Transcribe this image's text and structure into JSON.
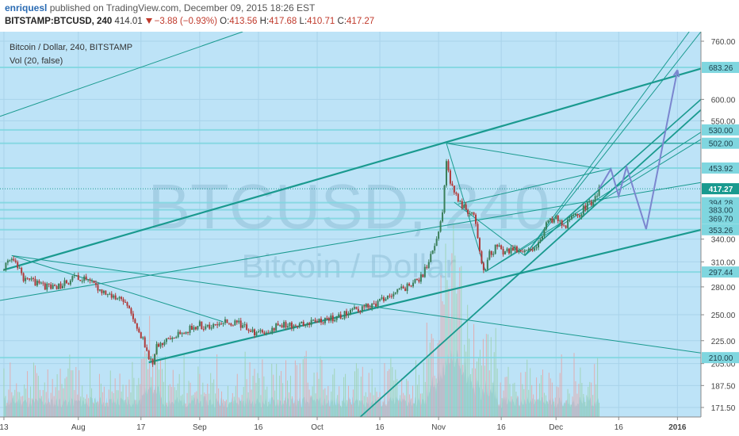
{
  "header": {
    "author": "enriquesl",
    "published_text": "published on TradingView.com, December 09, 2015 18:26 EST",
    "symbol": "BITSTAMP:BTCUSD, 240",
    "last": "414.01",
    "change": "−3.88 (−0.93%)",
    "open_label": "O:",
    "open": "413.56",
    "high_label": "H:",
    "high": "417.68",
    "low_label": "L:",
    "low": "410.71",
    "close_label": "C:",
    "close": "417.27"
  },
  "legend": {
    "series": "Bitcoin / Dollar, 240, BITSTAMP",
    "volume": "Vol (20, false)"
  },
  "watermark": {
    "symbol": "BTCUSD, 240",
    "name": "Bitcoin / Dollar"
  },
  "colors": {
    "plot_bg": "#bde3f7",
    "trend_line": "#1a9a8f",
    "projection": "#7b86cf",
    "candle_up": "#3a7f5a",
    "candle_down": "#b03a3a",
    "volume": "#6fbfd8",
    "axis_label_bg": "#7fd6df",
    "current_price_bg": "#1a9a8f"
  },
  "chart_data": {
    "type": "candlestick",
    "title": "Bitcoin / Dollar, 240, BITSTAMP",
    "price_scale": "log",
    "ylim": [
      165,
      790
    ],
    "y_ticks": [
      171.5,
      187.5,
      205,
      225,
      250,
      280,
      310,
      340,
      383,
      454,
      550,
      600,
      760
    ],
    "y_highlight_labels": [
      {
        "value": 683.26,
        "label": "683.26"
      },
      {
        "value": 530.0,
        "label": "530.00"
      },
      {
        "value": 502.0,
        "label": "502.00"
      },
      {
        "value": 453.92,
        "label": "453.92"
      },
      {
        "value": 417.27,
        "label": "417.27",
        "current": true
      },
      {
        "value": 394.28,
        "label": "394.28"
      },
      {
        "value": 383.0,
        "label": "383.00"
      },
      {
        "value": 369.7,
        "label": "369.70"
      },
      {
        "value": 353.26,
        "label": "353.26"
      },
      {
        "value": 297.44,
        "label": "297.44"
      },
      {
        "value": 210.0,
        "label": "210.00"
      }
    ],
    "y_tick_labels": [
      "760.00",
      "600.00",
      "550.00",
      "340.00",
      "310.00",
      "280.00",
      "250.00",
      "225.00",
      "205.00",
      "187.50",
      "171.50"
    ],
    "x_tick_labels": [
      "13",
      "Aug",
      "17",
      "Sep",
      "16",
      "Oct",
      "16",
      "Nov",
      "16",
      "Dec",
      "16",
      "2016"
    ],
    "x_ticks_day": [
      0,
      19,
      35,
      50,
      65,
      80,
      96,
      111,
      127,
      141,
      157,
      172
    ],
    "x_range_days": [
      -1,
      178
    ],
    "horizontal_levels": [
      683.26,
      530.0,
      502.0,
      453.92,
      394.28,
      383.0,
      369.7,
      353.26,
      297.44,
      210.0
    ],
    "price_path": [
      [
        0,
        300
      ],
      [
        2,
        318
      ],
      [
        5,
        290
      ],
      [
        8,
        285
      ],
      [
        12,
        278
      ],
      [
        16,
        285
      ],
      [
        19,
        292
      ],
      [
        22,
        286
      ],
      [
        25,
        276
      ],
      [
        28,
        270
      ],
      [
        31,
        260
      ],
      [
        33,
        248
      ],
      [
        35,
        230
      ],
      [
        37,
        210
      ],
      [
        38,
        206
      ],
      [
        39,
        222
      ],
      [
        42,
        227
      ],
      [
        46,
        233
      ],
      [
        50,
        240
      ],
      [
        53,
        236
      ],
      [
        56,
        243
      ],
      [
        60,
        241
      ],
      [
        63,
        234
      ],
      [
        66,
        231
      ],
      [
        69,
        238
      ],
      [
        73,
        240
      ],
      [
        77,
        240
      ],
      [
        80,
        243
      ],
      [
        84,
        246
      ],
      [
        88,
        252
      ],
      [
        92,
        258
      ],
      [
        95,
        262
      ],
      [
        98,
        270
      ],
      [
        101,
        275
      ],
      [
        104,
        283
      ],
      [
        107,
        292
      ],
      [
        109,
        322
      ],
      [
        110,
        330
      ],
      [
        112,
        380
      ],
      [
        113,
        465
      ],
      [
        114,
        430
      ],
      [
        116,
        395
      ],
      [
        118,
        385
      ],
      [
        120,
        370
      ],
      [
        121,
        345
      ],
      [
        122,
        310
      ],
      [
        123,
        298
      ],
      [
        124,
        320
      ],
      [
        126,
        330
      ],
      [
        128,
        322
      ],
      [
        130,
        328
      ],
      [
        132,
        322
      ],
      [
        134,
        325
      ],
      [
        136,
        333
      ],
      [
        138,
        355
      ],
      [
        139,
        368
      ],
      [
        140,
        365
      ],
      [
        141,
        372
      ],
      [
        143,
        358
      ],
      [
        145,
        370
      ],
      [
        147,
        378
      ],
      [
        149,
        392
      ],
      [
        151,
        400
      ],
      [
        152,
        417
      ]
    ],
    "volume_baseline": 171.5,
    "projection_path": [
      [
        152,
        417
      ],
      [
        155,
        452
      ],
      [
        157,
        405
      ],
      [
        159,
        456
      ],
      [
        164,
        354
      ],
      [
        172,
        676
      ]
    ]
  }
}
